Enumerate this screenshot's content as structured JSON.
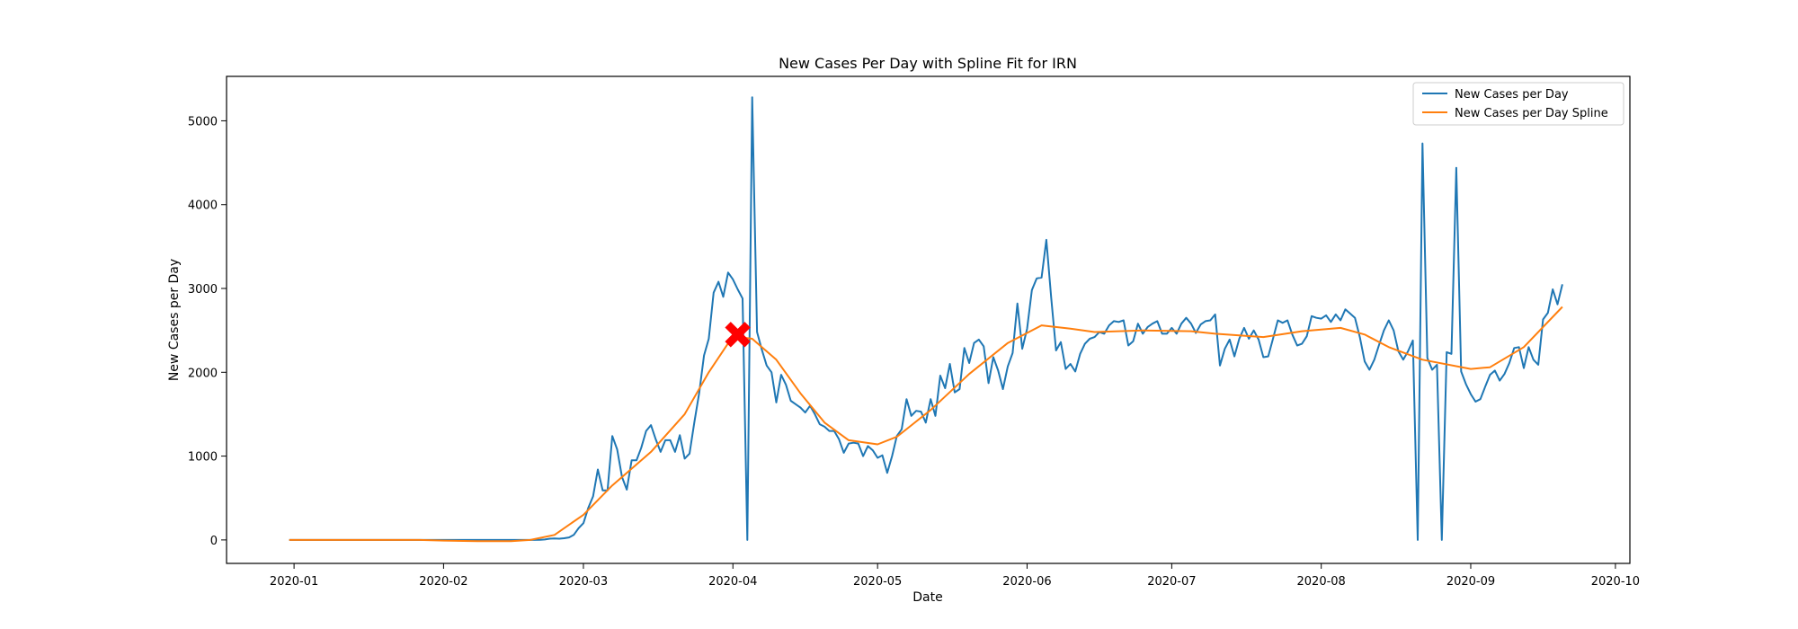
{
  "colors": {
    "background": "#ffffff",
    "axis": "#000000",
    "raw_series": "#1f77b4",
    "spline_series": "#ff7f0e",
    "marker": "#ff0000"
  },
  "chart_data": {
    "type": "line",
    "title": "New Cases Per Day with Spline Fit for IRN",
    "xlabel": "Date",
    "ylabel": "New Cases per Day",
    "xlim": [
      "2019-12-18",
      "2020-10-04"
    ],
    "ylim": [
      -280,
      5530
    ],
    "x_ticks": [
      "2020-01-01",
      "2020-02-01",
      "2020-03-01",
      "2020-04-01",
      "2020-05-01",
      "2020-06-01",
      "2020-07-01",
      "2020-08-01",
      "2020-09-01",
      "2020-10-01"
    ],
    "x_tick_labels": [
      "2020-01",
      "2020-02",
      "2020-03",
      "2020-04",
      "2020-05",
      "2020-06",
      "2020-07",
      "2020-08",
      "2020-09",
      "2020-10"
    ],
    "y_ticks": [
      0,
      1000,
      2000,
      3000,
      4000,
      5000
    ],
    "y_tick_labels": [
      "0",
      "1000",
      "2000",
      "3000",
      "4000",
      "5000"
    ],
    "grid": false,
    "legend_position": "top-right",
    "series": [
      {
        "name": "New Cases per Day",
        "color": "#1f77b4",
        "points": [
          [
            "2019-12-31",
            0
          ],
          [
            "2020-02-19",
            0
          ],
          [
            "2020-02-21",
            2
          ],
          [
            "2020-02-22",
            5
          ],
          [
            "2020-02-23",
            15
          ],
          [
            "2020-02-24",
            18
          ],
          [
            "2020-02-25",
            15
          ],
          [
            "2020-02-26",
            20
          ],
          [
            "2020-02-27",
            30
          ],
          [
            "2020-02-28",
            60
          ],
          [
            "2020-02-29",
            140
          ],
          [
            "2020-03-01",
            200
          ],
          [
            "2020-03-02",
            380
          ],
          [
            "2020-03-03",
            520
          ],
          [
            "2020-03-04",
            840
          ],
          [
            "2020-03-05",
            590
          ],
          [
            "2020-03-06",
            590
          ],
          [
            "2020-03-07",
            1240
          ],
          [
            "2020-03-08",
            1080
          ],
          [
            "2020-03-09",
            750
          ],
          [
            "2020-03-10",
            600
          ],
          [
            "2020-03-11",
            950
          ],
          [
            "2020-03-12",
            950
          ],
          [
            "2020-03-13",
            1100
          ],
          [
            "2020-03-14",
            1300
          ],
          [
            "2020-03-15",
            1370
          ],
          [
            "2020-03-16",
            1200
          ],
          [
            "2020-03-17",
            1050
          ],
          [
            "2020-03-18",
            1190
          ],
          [
            "2020-03-19",
            1190
          ],
          [
            "2020-03-20",
            1050
          ],
          [
            "2020-03-21",
            1250
          ],
          [
            "2020-03-22",
            970
          ],
          [
            "2020-03-23",
            1030
          ],
          [
            "2020-03-24",
            1400
          ],
          [
            "2020-03-25",
            1750
          ],
          [
            "2020-03-26",
            2200
          ],
          [
            "2020-03-27",
            2400
          ],
          [
            "2020-03-28",
            2950
          ],
          [
            "2020-03-29",
            3080
          ],
          [
            "2020-03-30",
            2900
          ],
          [
            "2020-03-31",
            3190
          ],
          [
            "2020-04-01",
            3110
          ],
          [
            "2020-04-02",
            2990
          ],
          [
            "2020-04-03",
            2880
          ],
          [
            "2020-04-04",
            0
          ],
          [
            "2020-04-05",
            5280
          ],
          [
            "2020-04-06",
            2480
          ],
          [
            "2020-04-07",
            2270
          ],
          [
            "2020-04-08",
            2080
          ],
          [
            "2020-04-09",
            2000
          ],
          [
            "2020-04-10",
            1640
          ],
          [
            "2020-04-11",
            1970
          ],
          [
            "2020-04-12",
            1850
          ],
          [
            "2020-04-13",
            1660
          ],
          [
            "2020-04-14",
            1620
          ],
          [
            "2020-04-15",
            1580
          ],
          [
            "2020-04-16",
            1520
          ],
          [
            "2020-04-17",
            1600
          ],
          [
            "2020-04-18",
            1500
          ],
          [
            "2020-04-19",
            1380
          ],
          [
            "2020-04-20",
            1350
          ],
          [
            "2020-04-21",
            1300
          ],
          [
            "2020-04-22",
            1300
          ],
          [
            "2020-04-23",
            1200
          ],
          [
            "2020-04-24",
            1040
          ],
          [
            "2020-04-25",
            1150
          ],
          [
            "2020-04-26",
            1160
          ],
          [
            "2020-04-27",
            1150
          ],
          [
            "2020-04-28",
            1000
          ],
          [
            "2020-04-29",
            1120
          ],
          [
            "2020-04-30",
            1070
          ],
          [
            "2020-05-01",
            980
          ],
          [
            "2020-05-02",
            1010
          ],
          [
            "2020-05-03",
            800
          ],
          [
            "2020-05-04",
            1000
          ],
          [
            "2020-05-05",
            1240
          ],
          [
            "2020-05-06",
            1320
          ],
          [
            "2020-05-07",
            1680
          ],
          [
            "2020-05-08",
            1480
          ],
          [
            "2020-05-09",
            1540
          ],
          [
            "2020-05-10",
            1530
          ],
          [
            "2020-05-11",
            1400
          ],
          [
            "2020-05-12",
            1680
          ],
          [
            "2020-05-13",
            1480
          ],
          [
            "2020-05-14",
            1960
          ],
          [
            "2020-05-15",
            1810
          ],
          [
            "2020-05-16",
            2100
          ],
          [
            "2020-05-17",
            1760
          ],
          [
            "2020-05-18",
            1800
          ],
          [
            "2020-05-19",
            2290
          ],
          [
            "2020-05-20",
            2110
          ],
          [
            "2020-05-21",
            2350
          ],
          [
            "2020-05-22",
            2390
          ],
          [
            "2020-05-23",
            2310
          ],
          [
            "2020-05-24",
            1870
          ],
          [
            "2020-05-25",
            2180
          ],
          [
            "2020-05-26",
            2020
          ],
          [
            "2020-05-27",
            1800
          ],
          [
            "2020-05-28",
            2070
          ],
          [
            "2020-05-29",
            2230
          ],
          [
            "2020-05-30",
            2820
          ],
          [
            "2020-05-31",
            2280
          ],
          [
            "2020-06-01",
            2520
          ],
          [
            "2020-06-02",
            2980
          ],
          [
            "2020-06-03",
            3120
          ],
          [
            "2020-06-04",
            3130
          ],
          [
            "2020-06-05",
            3580
          ],
          [
            "2020-06-06",
            2890
          ],
          [
            "2020-06-07",
            2260
          ],
          [
            "2020-06-08",
            2360
          ],
          [
            "2020-06-09",
            2040
          ],
          [
            "2020-06-10",
            2100
          ],
          [
            "2020-06-11",
            2010
          ],
          [
            "2020-06-12",
            2220
          ],
          [
            "2020-06-13",
            2340
          ],
          [
            "2020-06-14",
            2400
          ],
          [
            "2020-06-15",
            2420
          ],
          [
            "2020-06-16",
            2480
          ],
          [
            "2020-06-17",
            2460
          ],
          [
            "2020-06-18",
            2560
          ],
          [
            "2020-06-19",
            2610
          ],
          [
            "2020-06-20",
            2600
          ],
          [
            "2020-06-21",
            2620
          ],
          [
            "2020-06-22",
            2320
          ],
          [
            "2020-06-23",
            2370
          ],
          [
            "2020-06-24",
            2580
          ],
          [
            "2020-06-25",
            2460
          ],
          [
            "2020-06-26",
            2540
          ],
          [
            "2020-06-27",
            2580
          ],
          [
            "2020-06-28",
            2610
          ],
          [
            "2020-06-29",
            2460
          ],
          [
            "2020-06-30",
            2460
          ],
          [
            "2020-07-01",
            2530
          ],
          [
            "2020-07-02",
            2460
          ],
          [
            "2020-07-03",
            2580
          ],
          [
            "2020-07-04",
            2650
          ],
          [
            "2020-07-05",
            2580
          ],
          [
            "2020-07-06",
            2470
          ],
          [
            "2020-07-07",
            2570
          ],
          [
            "2020-07-08",
            2610
          ],
          [
            "2020-07-09",
            2620
          ],
          [
            "2020-07-10",
            2690
          ],
          [
            "2020-07-11",
            2080
          ],
          [
            "2020-07-12",
            2280
          ],
          [
            "2020-07-13",
            2390
          ],
          [
            "2020-07-14",
            2190
          ],
          [
            "2020-07-15",
            2400
          ],
          [
            "2020-07-16",
            2530
          ],
          [
            "2020-07-17",
            2400
          ],
          [
            "2020-07-18",
            2500
          ],
          [
            "2020-07-19",
            2390
          ],
          [
            "2020-07-20",
            2180
          ],
          [
            "2020-07-21",
            2190
          ],
          [
            "2020-07-22",
            2400
          ],
          [
            "2020-07-23",
            2620
          ],
          [
            "2020-07-24",
            2590
          ],
          [
            "2020-07-25",
            2620
          ],
          [
            "2020-07-26",
            2450
          ],
          [
            "2020-07-27",
            2320
          ],
          [
            "2020-07-28",
            2340
          ],
          [
            "2020-07-29",
            2430
          ],
          [
            "2020-07-30",
            2670
          ],
          [
            "2020-07-31",
            2650
          ],
          [
            "2020-08-01",
            2640
          ],
          [
            "2020-08-02",
            2680
          ],
          [
            "2020-08-03",
            2600
          ],
          [
            "2020-08-04",
            2690
          ],
          [
            "2020-08-05",
            2620
          ],
          [
            "2020-08-06",
            2750
          ],
          [
            "2020-08-07",
            2700
          ],
          [
            "2020-08-08",
            2650
          ],
          [
            "2020-08-09",
            2420
          ],
          [
            "2020-08-10",
            2130
          ],
          [
            "2020-08-11",
            2030
          ],
          [
            "2020-08-12",
            2150
          ],
          [
            "2020-08-13",
            2330
          ],
          [
            "2020-08-14",
            2500
          ],
          [
            "2020-08-15",
            2620
          ],
          [
            "2020-08-16",
            2500
          ],
          [
            "2020-08-17",
            2250
          ],
          [
            "2020-08-18",
            2150
          ],
          [
            "2020-08-19",
            2250
          ],
          [
            "2020-08-20",
            2380
          ],
          [
            "2020-08-21",
            0
          ],
          [
            "2020-08-22",
            4730
          ],
          [
            "2020-08-23",
            2170
          ],
          [
            "2020-08-24",
            2030
          ],
          [
            "2020-08-25",
            2090
          ],
          [
            "2020-08-26",
            0
          ],
          [
            "2020-08-27",
            2240
          ],
          [
            "2020-08-28",
            2220
          ],
          [
            "2020-08-29",
            4440
          ],
          [
            "2020-08-30",
            2010
          ],
          [
            "2020-08-31",
            1860
          ],
          [
            "2020-09-01",
            1740
          ],
          [
            "2020-09-02",
            1650
          ],
          [
            "2020-09-03",
            1680
          ],
          [
            "2020-09-04",
            1830
          ],
          [
            "2020-09-05",
            1970
          ],
          [
            "2020-09-06",
            2020
          ],
          [
            "2020-09-07",
            1900
          ],
          [
            "2020-09-08",
            1980
          ],
          [
            "2020-09-09",
            2110
          ],
          [
            "2020-09-10",
            2290
          ],
          [
            "2020-09-11",
            2300
          ],
          [
            "2020-09-12",
            2050
          ],
          [
            "2020-09-13",
            2300
          ],
          [
            "2020-09-14",
            2150
          ],
          [
            "2020-09-15",
            2090
          ],
          [
            "2020-09-16",
            2630
          ],
          [
            "2020-09-17",
            2710
          ],
          [
            "2020-09-18",
            2990
          ],
          [
            "2020-09-19",
            2810
          ],
          [
            "2020-09-20",
            3050
          ]
        ]
      },
      {
        "name": "New Cases per Day Spline",
        "color": "#ff7f0e",
        "points": [
          [
            "2019-12-31",
            0
          ],
          [
            "2020-01-15",
            0
          ],
          [
            "2020-01-27",
            0
          ],
          [
            "2020-02-01",
            -8
          ],
          [
            "2020-02-08",
            -15
          ],
          [
            "2020-02-15",
            -15
          ],
          [
            "2020-02-19",
            0
          ],
          [
            "2020-02-24",
            60
          ],
          [
            "2020-03-01",
            300
          ],
          [
            "2020-03-07",
            650
          ],
          [
            "2020-03-15",
            1050
          ],
          [
            "2020-03-22",
            1500
          ],
          [
            "2020-03-27",
            2000
          ],
          [
            "2020-04-01",
            2430
          ],
          [
            "2020-04-05",
            2400
          ],
          [
            "2020-04-10",
            2150
          ],
          [
            "2020-04-15",
            1750
          ],
          [
            "2020-04-20",
            1400
          ],
          [
            "2020-04-25",
            1190
          ],
          [
            "2020-05-01",
            1140
          ],
          [
            "2020-05-05",
            1230
          ],
          [
            "2020-05-12",
            1550
          ],
          [
            "2020-05-20",
            1980
          ],
          [
            "2020-05-28",
            2350
          ],
          [
            "2020-06-04",
            2560
          ],
          [
            "2020-06-10",
            2520
          ],
          [
            "2020-06-15",
            2480
          ],
          [
            "2020-06-25",
            2500
          ],
          [
            "2020-07-05",
            2490
          ],
          [
            "2020-07-10",
            2460
          ],
          [
            "2020-07-20",
            2420
          ],
          [
            "2020-07-28",
            2490
          ],
          [
            "2020-08-05",
            2530
          ],
          [
            "2020-08-10",
            2450
          ],
          [
            "2020-08-15",
            2300
          ],
          [
            "2020-08-22",
            2150
          ],
          [
            "2020-09-01",
            2040
          ],
          [
            "2020-09-05",
            2060
          ],
          [
            "2020-09-12",
            2300
          ],
          [
            "2020-09-20",
            2780
          ]
        ]
      }
    ],
    "marker": {
      "x": "2020-04-02",
      "y": 2450,
      "symbol": "X",
      "color": "#ff0000"
    }
  }
}
